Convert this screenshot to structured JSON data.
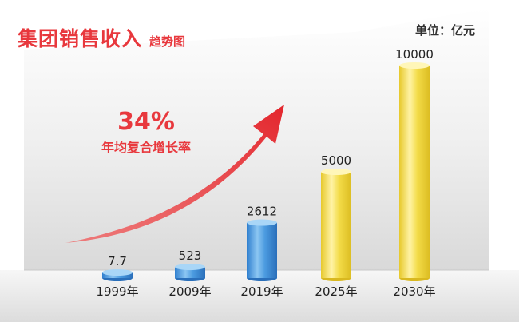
{
  "header": {
    "title_main": "集团销售收入",
    "title_sub": "趋势图",
    "unit": "单位：亿元"
  },
  "annotation": {
    "cagr_value": "34%",
    "cagr_label": "年均复合增长率"
  },
  "colors": {
    "accent_red": "#e8383d",
    "bar_blue": "#3e8fd8",
    "bar_yellow": "#f4dc3a"
  },
  "chart_data": {
    "type": "bar",
    "categories": [
      "1999年",
      "2009年",
      "2019年",
      "2025年",
      "2030年"
    ],
    "values": [
      7.7,
      523,
      2612,
      5000,
      10000
    ],
    "value_labels": [
      "7.7",
      "523",
      "2612",
      "5000",
      "10000"
    ],
    "bar_colors": [
      "blue",
      "blue",
      "blue",
      "yellow",
      "yellow"
    ],
    "title": "集团销售收入趋势图",
    "ylabel": "",
    "xlabel": "",
    "annotations": [
      "34%",
      "年均复合增长率"
    ]
  }
}
